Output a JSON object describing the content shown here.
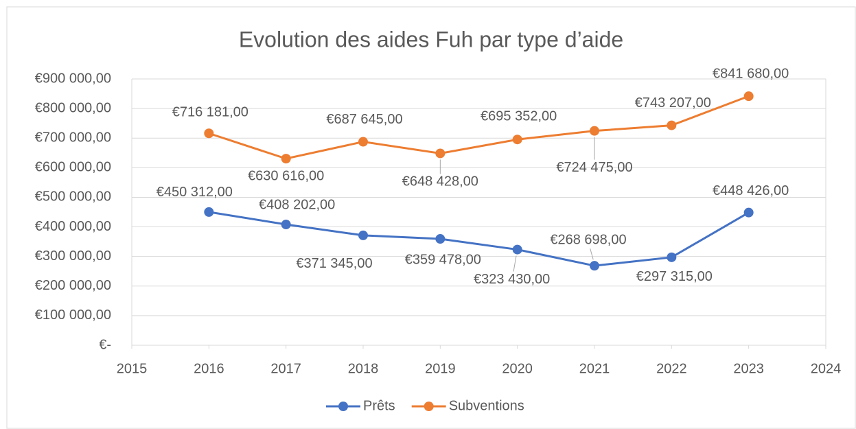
{
  "chart_data": {
    "type": "line",
    "title": "Evolution des aides Fuh par type d’aide",
    "x": [
      2016,
      2017,
      2018,
      2019,
      2020,
      2021,
      2022,
      2023
    ],
    "series": [
      {
        "name": "Prêts",
        "color": "#4472c4",
        "values": [
          450312,
          408202,
          371345,
          359478,
          323430,
          268698,
          297315,
          448426
        ],
        "value_labels": [
          "€450 312,00",
          "€408 202,00",
          "€371 345,00",
          "€359 478,00",
          "€323 430,00",
          "€268 698,00",
          "€297 315,00",
          "€448 426,00"
        ]
      },
      {
        "name": "Subventions",
        "color": "#ed7d31",
        "values": [
          716181,
          630616,
          687645,
          648428,
          695352,
          724475,
          743207,
          841680
        ],
        "value_labels": [
          "€716 181,00",
          "€630 616,00",
          "€687 645,00",
          "€648 428,00",
          "€695 352,00",
          "€724 475,00",
          "€743 207,00",
          "€841 680,00"
        ]
      }
    ],
    "xlim": [
      2015,
      2024
    ],
    "xticks": [
      2015,
      2016,
      2017,
      2018,
      2019,
      2020,
      2021,
      2022,
      2023,
      2024
    ],
    "ylim": [
      0,
      900000
    ],
    "yticks": [
      {
        "value": 0,
        "label": "€-"
      },
      {
        "value": 100000,
        "label": "€100 000,00"
      },
      {
        "value": 200000,
        "label": "€200 000,00"
      },
      {
        "value": 300000,
        "label": "€300 000,00"
      },
      {
        "value": 400000,
        "label": "€400 000,00"
      },
      {
        "value": 500000,
        "label": "€500 000,00"
      },
      {
        "value": 600000,
        "label": "€600 000,00"
      },
      {
        "value": 700000,
        "label": "€700 000,00"
      },
      {
        "value": 800000,
        "label": "€800 000,00"
      },
      {
        "value": 900000,
        "label": "€900 000,00"
      }
    ],
    "grid": true,
    "legend": "bottom"
  }
}
